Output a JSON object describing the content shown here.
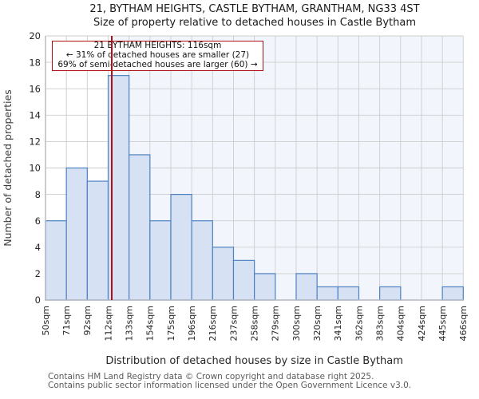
{
  "page": {
    "title": "21, BYTHAM HEIGHTS, CASTLE BYTHAM, GRANTHAM, NG33 4ST",
    "subtitle": "Size of property relative to detached houses in Castle Bytham"
  },
  "annotation": {
    "line1": "21 BYTHAM HEIGHTS: 116sqm",
    "line2": "← 31% of detached houses are smaller (27)",
    "line3": "69% of semi-detached houses are larger (60) →"
  },
  "footer": {
    "line1": "Contains HM Land Registry data © Crown copyright and database right 2025.",
    "line2": "Contains public sector information licensed under the Open Government Licence v3.0."
  },
  "chart_data": {
    "type": "bar",
    "title": "21, BYTHAM HEIGHTS, CASTLE BYTHAM, GRANTHAM, NG33 4ST",
    "subtitle": "Size of property relative to detached houses in Castle Bytham",
    "xlabel": "Distribution of detached houses by size in Castle Bytham",
    "ylabel": "Number of detached properties",
    "categories": [
      "50sqm",
      "71sqm",
      "92sqm",
      "112sqm",
      "133sqm",
      "154sqm",
      "175sqm",
      "196sqm",
      "216sqm",
      "237sqm",
      "258sqm",
      "279sqm",
      "300sqm",
      "320sqm",
      "341sqm",
      "362sqm",
      "383sqm",
      "404sqm",
      "424sqm",
      "445sqm",
      "466sqm"
    ],
    "bin_edges": [
      50,
      71,
      92,
      112,
      133,
      154,
      175,
      196,
      216,
      237,
      258,
      279,
      300,
      320,
      341,
      362,
      383,
      404,
      424,
      445,
      466
    ],
    "values": [
      6,
      10,
      9,
      17,
      11,
      6,
      8,
      6,
      4,
      3,
      2,
      0,
      2,
      1,
      1,
      0,
      1,
      0,
      0,
      1
    ],
    "ylim": [
      0,
      20
    ],
    "ytick_step": 2,
    "grid": true,
    "legend": "none",
    "marker": {
      "value": 116,
      "label": "116sqm",
      "smaller_pct": 31,
      "smaller_count": 27,
      "larger_pct": 69,
      "larger_count": 60
    },
    "colors": {
      "bar_fill": "#d6e2f4",
      "bar_edge": "#4d82c2",
      "marker_line": "#b01116",
      "annotation_border": "#b01116",
      "grid": "#cdcdcd",
      "spine": "#b3b8c0",
      "shade_right": "#f2f6fc",
      "tick_text": "#262626",
      "axis_label_text": "#3d3d3d"
    }
  }
}
